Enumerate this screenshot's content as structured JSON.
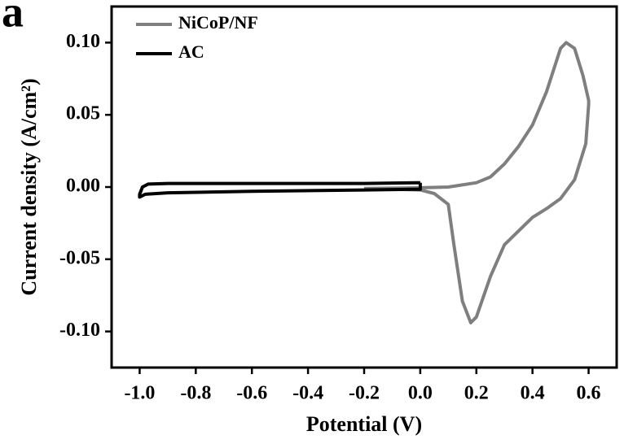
{
  "panel_label": "a",
  "chart_data": {
    "type": "line",
    "x_label": "Potential (V)",
    "y_label": "Current density (A/cm²)",
    "xlim": [
      -1.1,
      0.7
    ],
    "ylim": [
      -0.125,
      0.125
    ],
    "xticks": [
      {
        "value": -1,
        "label": "-1.0"
      },
      -0.8,
      -0.6,
      -0.4,
      -0.2,
      {
        "value": 0,
        "label": "0.0"
      },
      0.2,
      0.4,
      0.6
    ],
    "yticks": [
      {
        "value": 0.1,
        "label": "0.10"
      },
      {
        "value": 0.05,
        "label": "0.05"
      },
      {
        "value": 0,
        "label": "0.00"
      },
      {
        "value": -0.05,
        "label": "-0.05"
      },
      {
        "value": -0.1,
        "label": "-0.10"
      }
    ],
    "legend": "upper left",
    "series": [
      {
        "name": "NiCoP/NF",
        "color": "#7f7f7f",
        "x": [
          -0.2,
          0.0,
          0.1,
          0.2,
          0.25,
          0.3,
          0.35,
          0.4,
          0.45,
          0.5,
          0.52,
          0.55,
          0.58,
          0.6,
          0.6,
          0.59,
          0.55,
          0.5,
          0.45,
          0.4,
          0.3,
          0.25,
          0.2,
          0.18,
          0.15,
          0.12,
          0.1,
          0.05,
          0.0,
          -0.2
        ],
        "values": [
          -0.001,
          -0.0005,
          0.0,
          0.003,
          0.007,
          0.016,
          0.028,
          0.043,
          0.066,
          0.096,
          0.1,
          0.096,
          0.077,
          0.06,
          0.057,
          0.03,
          0.005,
          -0.008,
          -0.015,
          -0.021,
          -0.04,
          -0.062,
          -0.09,
          -0.094,
          -0.079,
          -0.04,
          -0.012,
          -0.0045,
          -0.002,
          -0.001
        ]
      },
      {
        "name": "AC",
        "color": "#000000",
        "x": [
          0.0,
          -0.2,
          -0.6,
          -0.9,
          -0.97,
          -0.99,
          -1.0,
          -1.0,
          -0.98,
          -0.9,
          -0.6,
          -0.2,
          0.0,
          0.0
        ],
        "values": [
          0.003,
          0.0025,
          0.0025,
          0.0025,
          0.002,
          0.0,
          -0.005,
          -0.007,
          -0.005,
          -0.004,
          -0.003,
          -0.002,
          -0.0015,
          0.003
        ]
      }
    ]
  }
}
